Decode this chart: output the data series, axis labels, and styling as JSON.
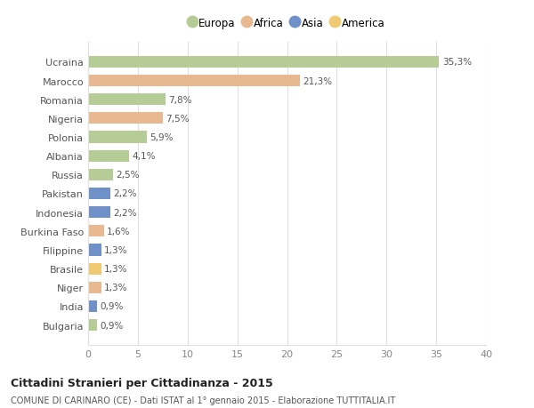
{
  "categories": [
    "Ucraina",
    "Marocco",
    "Romania",
    "Nigeria",
    "Polonia",
    "Albania",
    "Russia",
    "Pakistan",
    "Indonesia",
    "Burkina Faso",
    "Filippine",
    "Brasile",
    "Niger",
    "India",
    "Bulgaria"
  ],
  "values": [
    35.3,
    21.3,
    7.8,
    7.5,
    5.9,
    4.1,
    2.5,
    2.2,
    2.2,
    1.6,
    1.3,
    1.3,
    1.3,
    0.9,
    0.9
  ],
  "labels": [
    "35,3%",
    "21,3%",
    "7,8%",
    "7,5%",
    "5,9%",
    "4,1%",
    "2,5%",
    "2,2%",
    "2,2%",
    "1,6%",
    "1,3%",
    "1,3%",
    "1,3%",
    "0,9%",
    "0,9%"
  ],
  "continents": [
    "Europa",
    "Africa",
    "Europa",
    "Africa",
    "Europa",
    "Europa",
    "Europa",
    "Asia",
    "Asia",
    "Africa",
    "Asia",
    "America",
    "Africa",
    "Asia",
    "Europa"
  ],
  "continent_colors": {
    "Europa": "#b5cc96",
    "Africa": "#e8b990",
    "Asia": "#7090c8",
    "America": "#f0ca70"
  },
  "legend_labels": [
    "Europa",
    "Africa",
    "Asia",
    "America"
  ],
  "legend_colors": [
    "#b5cc96",
    "#e8b990",
    "#7090c8",
    "#f0ca70"
  ],
  "title": "Cittadini Stranieri per Cittadinanza - 2015",
  "subtitle": "COMUNE DI CARINARO (CE) - Dati ISTAT al 1° gennaio 2015 - Elaborazione TUTTITALIA.IT",
  "xlim": [
    0,
    40
  ],
  "xticks": [
    0,
    5,
    10,
    15,
    20,
    25,
    30,
    35,
    40
  ],
  "background_color": "#ffffff",
  "grid_color": "#e0e0e0",
  "bar_height": 0.62
}
